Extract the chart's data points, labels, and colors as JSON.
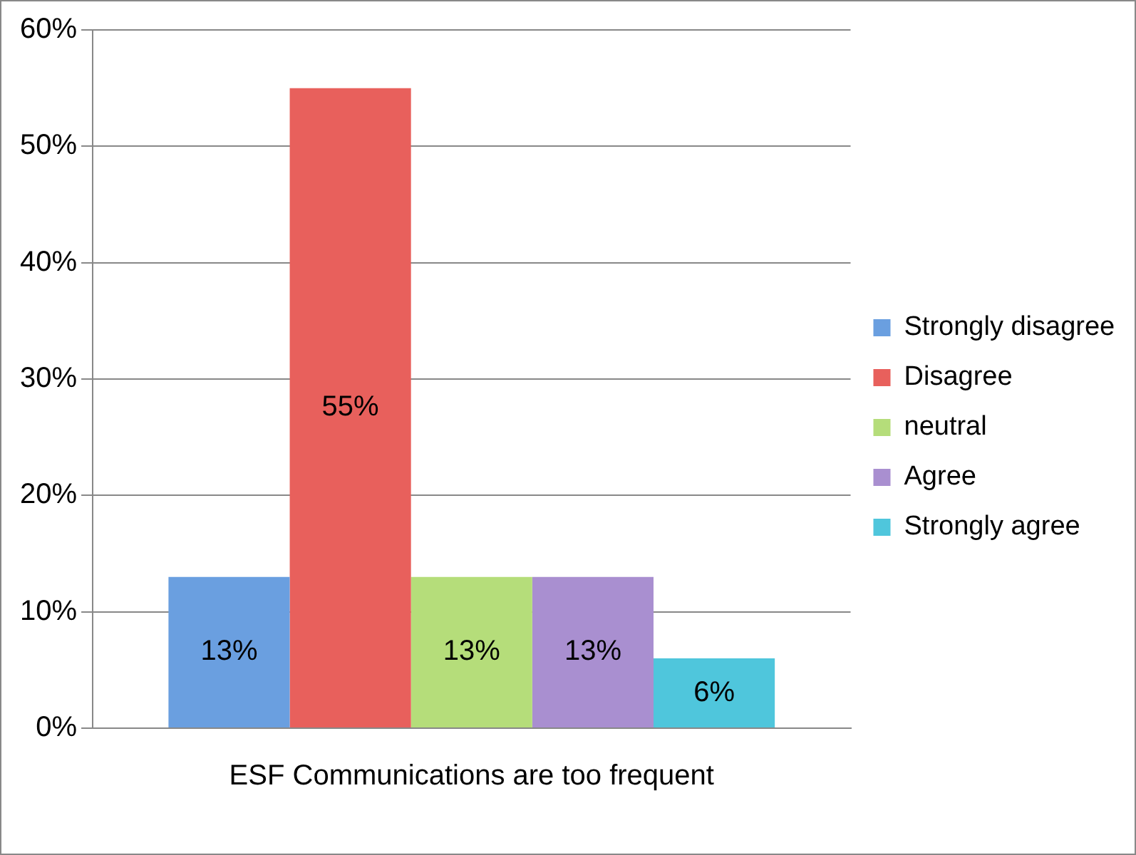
{
  "chart_data": {
    "type": "bar",
    "categories": [
      "ESF Communications are too frequent"
    ],
    "series": [
      {
        "name": "Strongly disagree",
        "color": "#6a9fe0",
        "values": [
          13
        ],
        "value_labels": [
          "13%"
        ]
      },
      {
        "name": "Disagree",
        "color": "#e8605c",
        "values": [
          55
        ],
        "value_labels": [
          "55%"
        ]
      },
      {
        "name": "neutral",
        "color": "#b5dd7a",
        "values": [
          13
        ],
        "value_labels": [
          "13%"
        ]
      },
      {
        "name": "Agree",
        "color": "#a98fd0",
        "values": [
          13
        ],
        "value_labels": [
          "13%"
        ]
      },
      {
        "name": "Strongly agree",
        "color": "#4fc6dc",
        "values": [
          6
        ],
        "value_labels": [
          "6%"
        ]
      }
    ],
    "ylim": [
      0,
      60
    ],
    "yticks": [
      {
        "value": 0,
        "label": "0%"
      },
      {
        "value": 10,
        "label": "10%"
      },
      {
        "value": 20,
        "label": "20%"
      },
      {
        "value": 30,
        "label": "30%"
      },
      {
        "value": 40,
        "label": "40%"
      },
      {
        "value": 50,
        "label": "50%"
      },
      {
        "value": 60,
        "label": "60%"
      }
    ],
    "grid": "y",
    "legend": "right"
  }
}
